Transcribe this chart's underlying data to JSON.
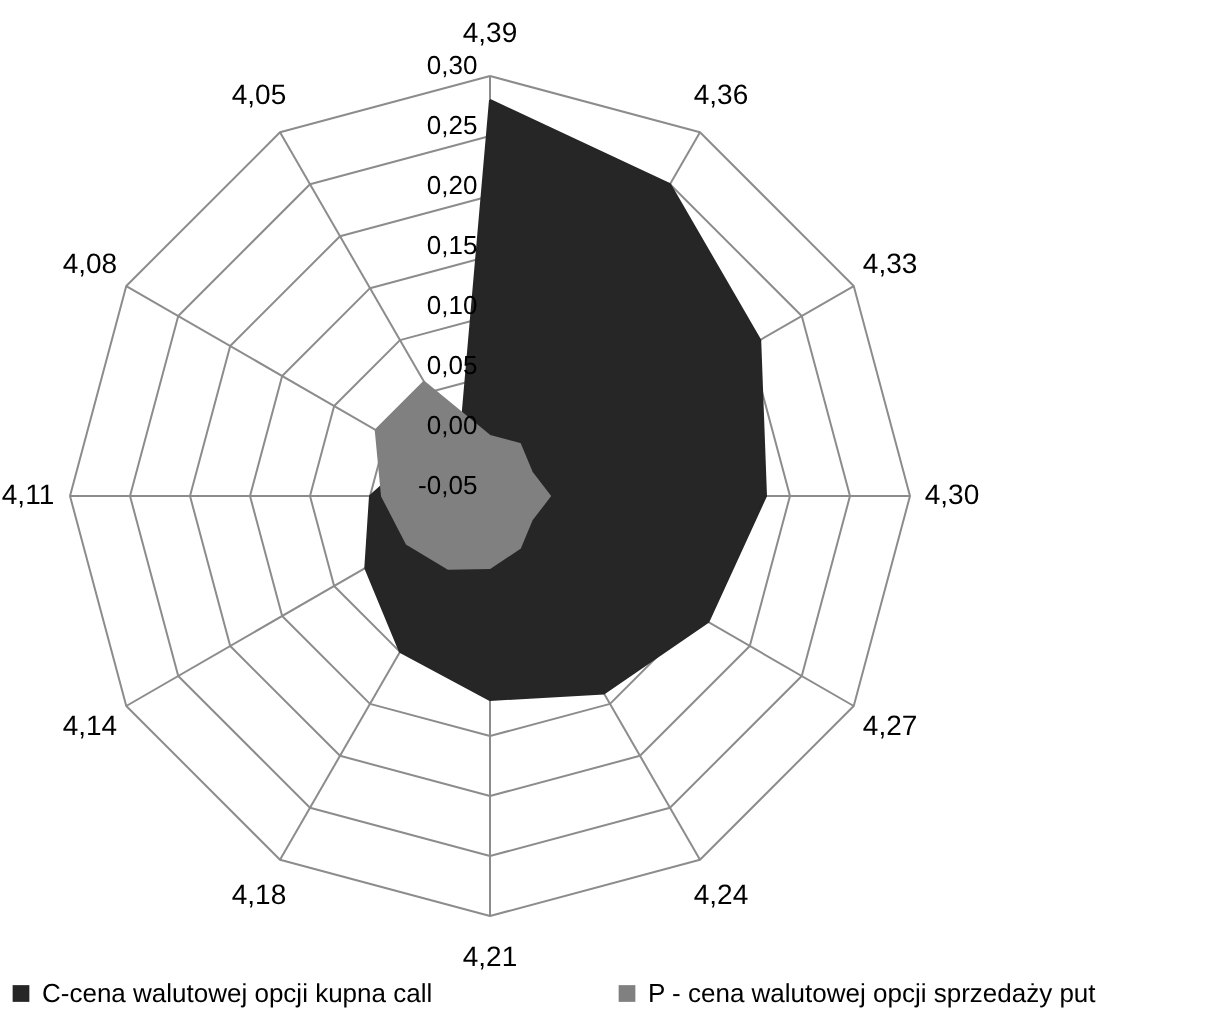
{
  "chart_data": {
    "type": "radar",
    "categories": [
      "4,39",
      "4,36",
      "4,33",
      "4,30",
      "4,27",
      "4,24",
      "4,21",
      "4,18",
      "4,14",
      "4,11",
      "4,08",
      "4,05"
    ],
    "series": [
      {
        "name": "C-cena walutowej opcji kupna call",
        "color": "#262626",
        "values": [
          0.28,
          0.25,
          0.21,
          0.18,
          0.16,
          0.14,
          0.12,
          0.1,
          0.07,
          0.05,
          0.02,
          0.0
        ]
      },
      {
        "name": "P - cena walutowej opcji sprzedaży put",
        "color": "#808080",
        "values": [
          0.0,
          0.0,
          -0.01,
          0.0,
          -0.01,
          0.0,
          0.01,
          0.02,
          0.03,
          0.04,
          0.06,
          0.06
        ]
      }
    ],
    "ylim": [
      -0.05,
      0.3
    ],
    "yticks": [
      {
        "value": -0.05,
        "label": "-0,05"
      },
      {
        "value": 0,
        "label": "0,00"
      },
      {
        "value": 0.05,
        "label": "0,05"
      },
      {
        "value": 0.1,
        "label": "0,10"
      },
      {
        "value": 0.15,
        "label": "0,15"
      },
      {
        "value": 0.2,
        "label": "0,20"
      },
      {
        "value": 0.25,
        "label": "0,25"
      },
      {
        "value": 0.3,
        "label": "0,30"
      }
    ],
    "grid": true,
    "legend": "bottom"
  }
}
